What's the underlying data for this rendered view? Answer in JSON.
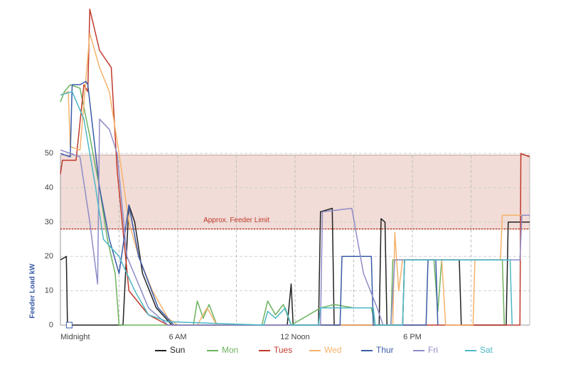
{
  "chart_data": {
    "type": "line",
    "y_label": "Feeder Load kW",
    "annotation": "Approx. Feeder Limit",
    "feeder_limit": 28,
    "limit_band": [
      28,
      49.5
    ],
    "xlim": [
      0,
      24
    ],
    "ylim": [
      0,
      92
    ],
    "xticks": [
      {
        "value": 0,
        "label": "Midnight"
      },
      {
        "value": 6,
        "label": "6 AM"
      },
      {
        "value": 12,
        "label": "12 Noon"
      },
      {
        "value": 18,
        "label": "6 PM"
      }
    ],
    "xgrid": [
      3,
      6,
      9,
      12,
      15,
      18,
      21,
      24
    ],
    "yticks": [
      0,
      10,
      20,
      30,
      40,
      50
    ],
    "grid": true,
    "series": [
      {
        "name": "Sun",
        "color": "#222222",
        "x": [
          0,
          0.3,
          0.36,
          3.2,
          3.5,
          3.8,
          4.2,
          4.9,
          5.7,
          11.6,
          11.8,
          11.9,
          13.2,
          13.3,
          13.9,
          14.0,
          16.3,
          16.4,
          16.6,
          16.7,
          17.5,
          17.6,
          20.4,
          20.5,
          22.8,
          22.9,
          24
        ],
        "values": [
          19,
          20,
          0,
          0,
          35,
          30,
          15,
          5,
          0,
          0,
          12,
          0,
          0,
          33,
          34,
          0,
          0,
          31,
          30,
          0,
          0,
          19,
          19,
          0,
          0,
          30,
          30
        ]
      },
      {
        "name": "Mon",
        "color": "#6db35f",
        "x": [
          0,
          0.2,
          0.5,
          1.0,
          1.5,
          2.0,
          2.4,
          2.8,
          3.0,
          6.8,
          7.0,
          7.3,
          7.6,
          8.0,
          10.3,
          10.6,
          11.0,
          11.4,
          11.8,
          13.3,
          14.0,
          15.0,
          15.9,
          16.1,
          16.9,
          17.0,
          19.1,
          19.3,
          19.5,
          22.6,
          22.7
        ],
        "values": [
          65,
          68,
          70,
          69,
          55,
          40,
          25,
          15,
          0,
          0,
          7,
          2,
          6,
          0,
          0,
          7,
          3,
          6,
          0,
          5,
          6,
          5,
          5,
          0,
          0,
          19,
          19,
          4,
          19,
          19,
          0
        ]
      },
      {
        "name": "Tues",
        "color": "#c0392b",
        "x": [
          0,
          0.1,
          0.8,
          1.2,
          1.4,
          1.5,
          2.0,
          2.6,
          2.9,
          3.5,
          4.5,
          5.5,
          23.5,
          23.55,
          24
        ],
        "values": [
          44,
          48,
          48,
          70,
          68,
          92,
          80,
          75,
          45,
          10,
          3,
          0,
          0,
          50,
          49
        ]
      },
      {
        "name": "Wed",
        "color": "#f4b26b",
        "x": [
          0,
          0.4,
          0.5,
          1.0,
          1.5,
          2.0,
          2.5,
          3.0,
          3.5,
          4.0,
          4.7,
          5.5,
          6.0,
          7.0,
          7.5,
          8.0,
          17.0,
          17.1,
          17.3,
          17.5,
          19.5,
          19.7,
          21.1,
          21.2,
          22.5,
          22.6,
          24
        ],
        "values": [
          67,
          68,
          52,
          51,
          85,
          75,
          68,
          50,
          30,
          20,
          10,
          2,
          0,
          0,
          5,
          0,
          0,
          27,
          10,
          19,
          19,
          0,
          0,
          19,
          19,
          32,
          32
        ]
      },
      {
        "name": "Thur",
        "color": "#3a5ba8",
        "x": [
          0,
          0.5,
          0.6,
          1.0,
          1.3,
          1.4,
          2.0,
          2.5,
          3.0,
          3.5,
          4.0,
          5.0,
          5.8,
          14.3,
          14.4,
          15.9,
          16.0,
          18.7,
          18.8,
          19.2,
          19.3
        ],
        "values": [
          50,
          49,
          70,
          70,
          71,
          70,
          40,
          25,
          15,
          35,
          20,
          5,
          0,
          0,
          20,
          20,
          0,
          0,
          19,
          19,
          0
        ]
      },
      {
        "name": "Fri",
        "color": "#8e8cc7",
        "x": [
          0,
          1.0,
          1.5,
          1.9,
          2.0,
          2.5,
          2.9,
          3.4,
          4.5,
          5.5,
          13.3,
          13.4,
          14.9,
          15.5,
          16.2,
          16.5,
          16.9,
          17.1,
          23.5,
          23.6,
          24
        ],
        "values": [
          51,
          49,
          30,
          12,
          60,
          57,
          50,
          20,
          5,
          0,
          0,
          33,
          34,
          15,
          5,
          0,
          0,
          19,
          19,
          32,
          32
        ]
      },
      {
        "name": "Sat",
        "color": "#4cb8c4",
        "x": [
          0,
          0.6,
          1.2,
          1.8,
          2.2,
          3.0,
          3.8,
          4.5,
          5.5,
          10.4,
          10.6,
          11.0,
          11.5,
          11.8,
          13.2,
          13.3,
          16.0,
          16.1,
          17.5,
          17.6,
          23.0,
          23.1
        ],
        "values": [
          67,
          68,
          60,
          40,
          25,
          20,
          10,
          3,
          1,
          0,
          4,
          2,
          5,
          0,
          0,
          5,
          5,
          0,
          0,
          19,
          19,
          0
        ]
      }
    ]
  }
}
